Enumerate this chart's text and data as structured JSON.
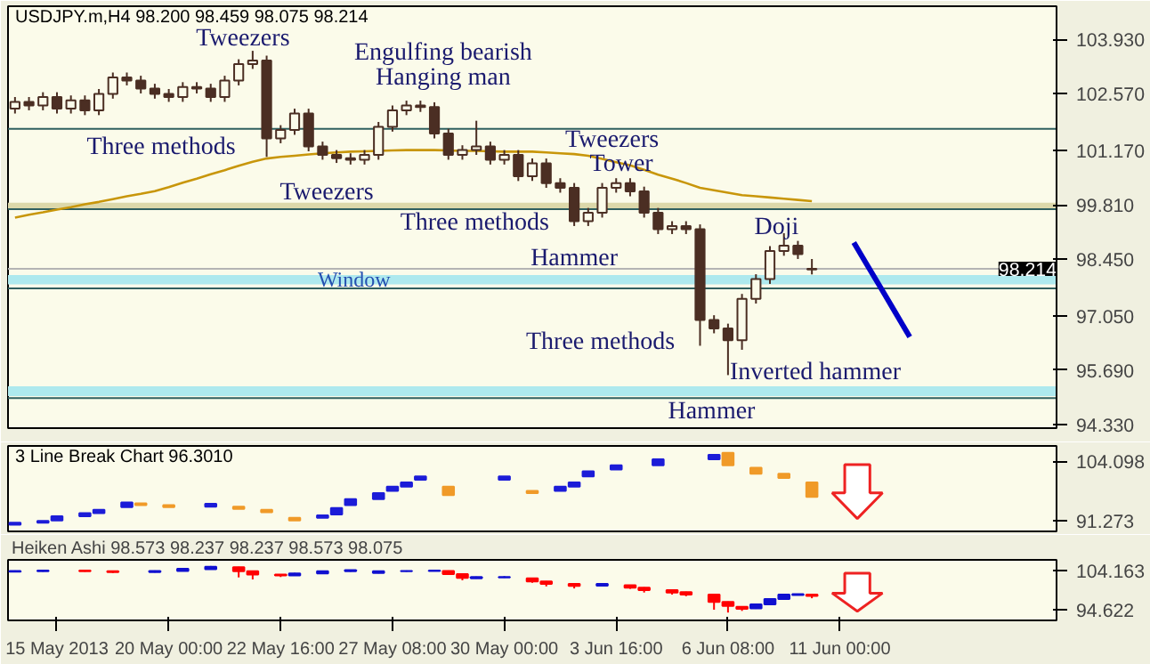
{
  "chart_data": [
    {
      "type": "candlestick",
      "title": "USDJPY.m,H4 98.200 98.459 98.075 98.214",
      "color": "#4b2e23",
      "categories": [
        null,
        null,
        null,
        null,
        null,
        null,
        null,
        null,
        null,
        null,
        null,
        null,
        null,
        null,
        null,
        null,
        null,
        null,
        null,
        null,
        null,
        null,
        null,
        null,
        null,
        null,
        null,
        null,
        null,
        null,
        null,
        null,
        null,
        null,
        null,
        null,
        null,
        null,
        null,
        null,
        null,
        null,
        null,
        null,
        null,
        null,
        null,
        null,
        null,
        null,
        null,
        null,
        null,
        null,
        null,
        null,
        null,
        null,
        null,
        null,
        null,
        null,
        null,
        null,
        null,
        null,
        null,
        null,
        null,
        null,
        null,
        null,
        null,
        null,
        null
      ],
      "ohlc": [
        [
          102.2,
          102.49,
          102.08,
          102.37
        ],
        [
          102.37,
          102.49,
          102.16,
          102.28
        ],
        [
          102.28,
          102.61,
          102.16,
          102.49
        ],
        [
          102.49,
          102.61,
          102.08,
          102.2
        ],
        [
          102.2,
          102.53,
          102.08,
          102.41
        ],
        [
          102.41,
          102.53,
          102.04,
          102.16
        ],
        [
          102.16,
          102.69,
          102.04,
          102.57
        ],
        [
          102.57,
          103.1,
          102.45,
          102.98
        ],
        [
          102.98,
          103.1,
          102.78,
          102.9
        ],
        [
          102.9,
          103.02,
          102.58,
          102.7
        ],
        [
          102.7,
          102.82,
          102.45,
          102.57
        ],
        [
          102.57,
          102.69,
          102.37,
          102.49
        ],
        [
          102.49,
          102.86,
          102.37,
          102.74
        ],
        [
          102.74,
          102.86,
          102.58,
          102.7
        ],
        [
          102.7,
          102.82,
          102.37,
          102.49
        ],
        [
          102.49,
          103.02,
          102.37,
          102.9
        ],
        [
          102.9,
          103.43,
          102.78,
          103.31
        ],
        [
          103.31,
          103.64,
          103.19,
          103.4
        ],
        [
          103.4,
          103.52,
          101.0,
          101.46
        ],
        [
          101.46,
          101.79,
          101.34,
          101.67
        ],
        [
          101.67,
          102.2,
          101.55,
          102.08
        ],
        [
          102.08,
          102.2,
          101.14,
          101.26
        ],
        [
          101.26,
          101.38,
          100.93,
          101.05
        ],
        [
          101.05,
          101.17,
          100.85,
          100.97
        ],
        [
          100.97,
          101.09,
          100.81,
          100.93
        ],
        [
          100.93,
          101.17,
          100.81,
          101.05
        ],
        [
          101.05,
          101.87,
          100.93,
          101.75
        ],
        [
          101.75,
          102.28,
          101.63,
          102.16
        ],
        [
          102.16,
          102.4,
          102.04,
          102.28
        ],
        [
          102.28,
          102.4,
          102.12,
          102.24
        ],
        [
          102.24,
          102.36,
          101.46,
          101.58
        ],
        [
          101.58,
          101.7,
          100.93,
          101.05
        ],
        [
          101.05,
          101.29,
          100.93,
          101.17
        ],
        [
          101.17,
          101.9,
          101.05,
          101.26
        ],
        [
          101.26,
          101.38,
          100.81,
          100.93
        ],
        [
          100.93,
          101.17,
          100.81,
          101.05
        ],
        [
          101.05,
          101.17,
          100.4,
          100.52
        ],
        [
          100.52,
          100.96,
          100.4,
          100.84
        ],
        [
          100.84,
          100.96,
          100.23,
          100.35
        ],
        [
          100.35,
          100.47,
          100.11,
          100.23
        ],
        [
          100.23,
          100.35,
          99.28,
          99.4
        ],
        [
          99.4,
          99.73,
          99.28,
          99.61
        ],
        [
          99.61,
          100.35,
          99.49,
          100.23
        ],
        [
          100.23,
          100.47,
          100.11,
          100.35
        ],
        [
          100.35,
          100.47,
          100.02,
          100.14
        ],
        [
          100.14,
          100.26,
          99.49,
          99.61
        ],
        [
          99.61,
          99.73,
          99.08,
          99.2
        ],
        [
          99.2,
          99.4,
          99.08,
          99.28
        ],
        [
          99.28,
          99.4,
          99.08,
          99.2
        ],
        [
          99.2,
          99.32,
          96.3,
          96.94
        ],
        [
          96.94,
          97.06,
          96.61,
          96.73
        ],
        [
          96.73,
          96.85,
          95.57,
          96.44
        ],
        [
          96.44,
          97.59,
          96.2,
          97.47
        ],
        [
          97.47,
          98.08,
          97.35,
          97.96
        ],
        [
          97.96,
          98.78,
          97.84,
          98.66
        ],
        [
          98.66,
          99.1,
          98.54,
          98.79
        ],
        [
          98.79,
          98.91,
          98.46,
          98.58
        ],
        [
          98.2,
          98.459,
          98.075,
          98.214
        ],
        null,
        null,
        null,
        null,
        null,
        null,
        null,
        null,
        null,
        null,
        null,
        null,
        null,
        null,
        null,
        null,
        null
      ],
      "series": [
        {
          "type": "line",
          "color": "#c8960a",
          "values": [
            99.49,
            99.56,
            99.62,
            99.69,
            99.75,
            99.82,
            99.88,
            99.95,
            100.02,
            100.08,
            100.15,
            100.25,
            100.36,
            100.46,
            100.57,
            100.67,
            100.78,
            100.88,
            100.96,
            101.0,
            101.03,
            101.06,
            101.09,
            101.11,
            101.13,
            101.14,
            101.15,
            101.16,
            101.17,
            101.17,
            101.17,
            101.16,
            101.15,
            101.15,
            101.14,
            101.13,
            101.13,
            101.13,
            101.11,
            101.09,
            101.07,
            101.03,
            100.95,
            100.87,
            100.79,
            100.68,
            100.56,
            100.46,
            100.35,
            100.23,
            100.17,
            100.11,
            100.05,
            100.02,
            99.99,
            99.96,
            99.93,
            99.9,
            null,
            null,
            null,
            null,
            null,
            null,
            null,
            null,
            null,
            null,
            null,
            null,
            null,
            null,
            null,
            null,
            null
          ]
        },
        {
          "type": "line",
          "color": "#0000c8",
          "values": [
            null,
            null,
            null,
            null,
            null,
            null,
            null,
            null,
            null,
            null,
            null,
            null,
            null,
            null,
            null,
            null,
            null,
            null,
            null,
            null,
            null,
            null,
            null,
            null,
            null,
            null,
            null,
            null,
            null,
            null,
            null,
            null,
            null,
            null,
            null,
            null,
            null,
            null,
            null,
            null,
            null,
            null,
            null,
            null,
            null,
            null,
            null,
            null,
            null,
            null,
            null,
            null,
            null,
            null,
            null,
            null,
            null,
            null,
            null,
            null,
            98.87,
            98.28,
            97.7,
            97.11,
            96.52,
            null,
            null,
            null,
            null,
            null,
            null,
            null,
            null,
            null,
            null
          ]
        }
      ],
      "ylim": [
        94.25,
        104.75
      ],
      "yticks": [
        {
          "value": 103.93,
          "label": "103.930"
        },
        {
          "value": 102.57,
          "label": "102.570"
        },
        {
          "value": 101.17,
          "label": "101.170"
        },
        {
          "value": 99.81,
          "label": "99.810"
        },
        {
          "value": 98.45,
          "label": "98.450"
        },
        {
          "value": 97.05,
          "label": "97.050"
        },
        {
          "value": 95.69,
          "label": "95.690"
        },
        {
          "value": 94.33,
          "label": "94.330"
        }
      ],
      "tick_labels": "y",
      "ref_lines": [
        {
          "axis": "y",
          "value": 101.7,
          "label": null,
          "color": "#2f5f5f"
        },
        {
          "axis": "y",
          "value": 99.7,
          "label": null,
          "color": "#2f5f5f"
        },
        {
          "axis": "y",
          "value": 98.214,
          "label": "98.214",
          "color": "#b4b4b4"
        },
        {
          "axis": "y",
          "value": 97.73,
          "label": null,
          "color": "#2f5f5f"
        },
        {
          "axis": "y",
          "value": 95.0,
          "label": null,
          "color": "#2f5f5f"
        }
      ],
      "bands": [
        {
          "axis": "y",
          "from": 99.7,
          "to": 99.86,
          "label": null,
          "color": "#dcd8aa"
        },
        {
          "axis": "y",
          "from": 97.83,
          "to": 98.06,
          "label": "Window",
          "color": "#aee9ee"
        },
        {
          "axis": "y",
          "from": 95.05,
          "to": 95.29,
          "label": null,
          "color": "#aee9ee"
        }
      ],
      "annotations": [
        "Tweezers",
        "Engulfing bearish",
        "Hanging man",
        "Three methods",
        "Tweezers",
        "Three methods",
        "Tweezers",
        "Tower",
        "Hammer",
        "Doji",
        "Three methods",
        "Inverted hammer",
        "Hammer"
      ]
    },
    {
      "type": "bar",
      "title": "3 Line Break Chart 96.3010",
      "categories": [
        null,
        null,
        null,
        null,
        null,
        null,
        null,
        null,
        null,
        null,
        null,
        null,
        null,
        null,
        null,
        null,
        null,
        null,
        null,
        null,
        null,
        null,
        null,
        null,
        null,
        null,
        null,
        null,
        null,
        null,
        null,
        null,
        null,
        null,
        null,
        null,
        null,
        null,
        null,
        null,
        null,
        null,
        null,
        null,
        null,
        null,
        null,
        null,
        null,
        null,
        null,
        null,
        null,
        null,
        null,
        null,
        null,
        null,
        null,
        null,
        null,
        null,
        null,
        null,
        null,
        null,
        null,
        null,
        null,
        null,
        null,
        null,
        null,
        null,
        null
      ],
      "base": [
        90.4,
        null,
        90.8,
        91.3,
        null,
        92.2,
        92.9,
        null,
        94.2,
        94.6,
        null,
        94.2,
        null,
        null,
        94.3,
        null,
        93.8,
        null,
        93.1,
        null,
        91.3,
        null,
        91.9,
        92.6,
        94.6,
        null,
        95.9,
        97.7,
        98.6,
        100.1,
        null,
        96.8,
        null,
        null,
        null,
        100.1,
        null,
        97.2,
        null,
        97.7,
        98.6,
        100.8,
        null,
        102.3,
        null,
        null,
        103.2,
        null,
        null,
        null,
        104.5,
        103.2,
        null,
        101.4,
        null,
        100.5,
        null,
        96.4,
        null,
        null,
        null,
        null,
        null,
        null,
        null,
        null,
        null,
        null,
        null,
        null,
        null,
        null,
        null,
        null,
        null
      ],
      "values": [
        0.4,
        null,
        0.4,
        0.9,
        null,
        0.7,
        0.7,
        null,
        1.0,
        0.4,
        null,
        0.4,
        null,
        null,
        0.6,
        null,
        0.5,
        null,
        0.5,
        null,
        0.6,
        null,
        0.5,
        1.4,
        1.3,
        null,
        1.3,
        0.9,
        0.9,
        0.7,
        null,
        1.8,
        null,
        null,
        null,
        0.7,
        null,
        0.5,
        null,
        0.9,
        0.9,
        1.1,
        null,
        0.9,
        null,
        null,
        1.3,
        null,
        null,
        null,
        1.0,
        2.7,
        null,
        1.3,
        null,
        0.9,
        null,
        3.1,
        null,
        null,
        null,
        null,
        null,
        null,
        null,
        null,
        null,
        null,
        null,
        null,
        null,
        null,
        null,
        null,
        null
      ],
      "colors": [
        "#1c1cd8",
        null,
        "#1c1cd8",
        "#1c1cd8",
        null,
        "#1c1cd8",
        "#1c1cd8",
        null,
        "#1c1cd8",
        "#f09a28",
        null,
        "#f09a28",
        null,
        null,
        "#1c1cd8",
        null,
        "#f09a28",
        null,
        "#f09a28",
        null,
        "#f09a28",
        null,
        "#1c1cd8",
        "#1c1cd8",
        "#1c1cd8",
        null,
        "#1c1cd8",
        "#1c1cd8",
        "#1c1cd8",
        "#1c1cd8",
        null,
        "#f09a28",
        null,
        null,
        null,
        "#1c1cd8",
        null,
        "#f09a28",
        null,
        "#1c1cd8",
        "#1c1cd8",
        "#1c1cd8",
        null,
        "#1c1cd8",
        null,
        null,
        "#1c1cd8",
        null,
        null,
        null,
        "#1c1cd8",
        "#f09a28",
        null,
        "#f09a28",
        null,
        "#f09a28",
        null,
        "#f09a28",
        null,
        null,
        null,
        null,
        null,
        null,
        null,
        null,
        null,
        null,
        null,
        null,
        null,
        null,
        null,
        null,
        null
      ],
      "ylim": [
        88.95,
        107.4
      ],
      "yticks": [
        {
          "value": 104.098,
          "label": "104.098"
        },
        {
          "value": 91.273,
          "label": "91.273"
        }
      ],
      "tick_labels": "y"
    },
    {
      "type": "candlestick",
      "title": "Heiken Ashi 98.573 98.237 98.237 98.573 98.075",
      "categories": [
        null,
        null,
        null,
        "15 May 2013",
        null,
        null,
        null,
        null,
        null,
        null,
        null,
        "20 May 00:00",
        null,
        null,
        null,
        null,
        null,
        null,
        null,
        "22 May 16:00",
        null,
        null,
        null,
        null,
        null,
        null,
        null,
        "27 May 08:00",
        null,
        null,
        null,
        null,
        null,
        null,
        null,
        "30 May 00:00",
        null,
        null,
        null,
        null,
        null,
        null,
        null,
        "3 Jun 16:00",
        null,
        null,
        null,
        null,
        null,
        null,
        null,
        "6 Jun 08:00",
        null,
        null,
        null,
        null,
        null,
        null,
        null,
        "11 Jun 00:00",
        null,
        null,
        null,
        null,
        null,
        null,
        null,
        null,
        null,
        null,
        null,
        null,
        null,
        null,
        null
      ],
      "ohlc": [
        [
          103.9,
          104.2,
          103.8,
          104.1
        ],
        null,
        [
          104.0,
          104.3,
          103.9,
          104.2
        ],
        null,
        null,
        [
          104.2,
          104.3,
          103.9,
          104.0
        ],
        null,
        [
          104.0,
          104.1,
          103.6,
          103.8
        ],
        null,
        null,
        [
          103.8,
          104.2,
          103.7,
          104.1
        ],
        null,
        [
          104.1,
          104.7,
          104.0,
          104.6
        ],
        null,
        [
          104.5,
          105.3,
          104.4,
          105.1
        ],
        null,
        [
          105.0,
          105.1,
          102.5,
          104.0
        ],
        [
          104.0,
          104.1,
          102.0,
          103.2
        ],
        null,
        [
          103.2,
          103.3,
          102.6,
          103.0
        ],
        [
          103.0,
          103.6,
          102.9,
          103.5
        ],
        null,
        [
          103.5,
          104.1,
          103.4,
          104.0
        ],
        null,
        [
          104.0,
          104.4,
          103.9,
          104.3
        ],
        null,
        [
          103.6,
          104.1,
          103.5,
          104.0
        ],
        null,
        [
          104.0,
          104.2,
          103.9,
          104.1
        ],
        null,
        [
          104.1,
          104.3,
          104.0,
          104.2
        ],
        [
          104.1,
          104.2,
          103.1,
          103.3
        ],
        [
          103.3,
          103.4,
          101.8,
          102.4
        ],
        [
          102.3,
          102.7,
          102.2,
          102.6
        ],
        null,
        [
          102.5,
          102.8,
          102.4,
          102.6
        ],
        null,
        [
          102.3,
          102.4,
          101.2,
          101.5
        ],
        [
          101.5,
          101.6,
          100.3,
          100.9
        ],
        null,
        [
          100.9,
          101.0,
          99.8,
          100.4
        ],
        null,
        [
          100.5,
          101.0,
          100.4,
          100.9
        ],
        null,
        [
          100.6,
          100.7,
          99.7,
          100.0
        ],
        [
          100.0,
          100.1,
          98.8,
          99.4
        ],
        null,
        [
          99.4,
          99.5,
          98.3,
          98.8
        ],
        [
          98.9,
          99.0,
          97.9,
          98.3
        ],
        null,
        [
          98.3,
          98.4,
          94.6,
          96.5
        ],
        [
          96.5,
          96.6,
          93.9,
          95.5
        ],
        [
          95.3,
          95.4,
          94.3,
          94.8
        ],
        [
          94.9,
          96.0,
          94.8,
          95.9
        ],
        [
          95.9,
          97.3,
          95.8,
          97.2
        ],
        [
          97.2,
          98.4,
          97.1,
          98.3
        ],
        [
          98.2,
          98.5,
          98.1,
          98.4
        ],
        [
          98.3,
          98.4,
          97.4,
          98.0
        ],
        null,
        null,
        null,
        null,
        null,
        null,
        null,
        null,
        null,
        null,
        null,
        null,
        null,
        null,
        null,
        null,
        null
      ],
      "colors": [
        "#1010d0",
        null,
        "#1010d0",
        null,
        null,
        "#ff0000",
        null,
        "#ff0000",
        null,
        null,
        "#1010d0",
        null,
        "#1010d0",
        null,
        "#1010d0",
        null,
        "#ff0000",
        "#ff0000",
        null,
        "#ff0000",
        "#1010d0",
        null,
        "#1010d0",
        null,
        "#1010d0",
        null,
        "#1010d0",
        null,
        "#1010d0",
        null,
        "#1010d0",
        "#ff0000",
        "#ff0000",
        "#1010d0",
        null,
        "#1010d0",
        null,
        "#ff0000",
        "#ff0000",
        null,
        "#ff0000",
        null,
        "#1010d0",
        null,
        "#ff0000",
        "#ff0000",
        null,
        "#ff0000",
        "#ff0000",
        null,
        "#ff0000",
        "#ff0000",
        "#ff0000",
        "#1010d0",
        "#1010d0",
        "#1010d0",
        "#1010d0",
        "#ff0000",
        null,
        null,
        null,
        null,
        null,
        null,
        null,
        null,
        null,
        null,
        null,
        null,
        null,
        null,
        null,
        null,
        null
      ],
      "ylim": [
        91.98,
        106.8
      ],
      "yticks": [
        {
          "value": 104.163,
          "label": "104.163"
        },
        {
          "value": 94.622,
          "label": "94.622"
        }
      ]
    }
  ]
}
